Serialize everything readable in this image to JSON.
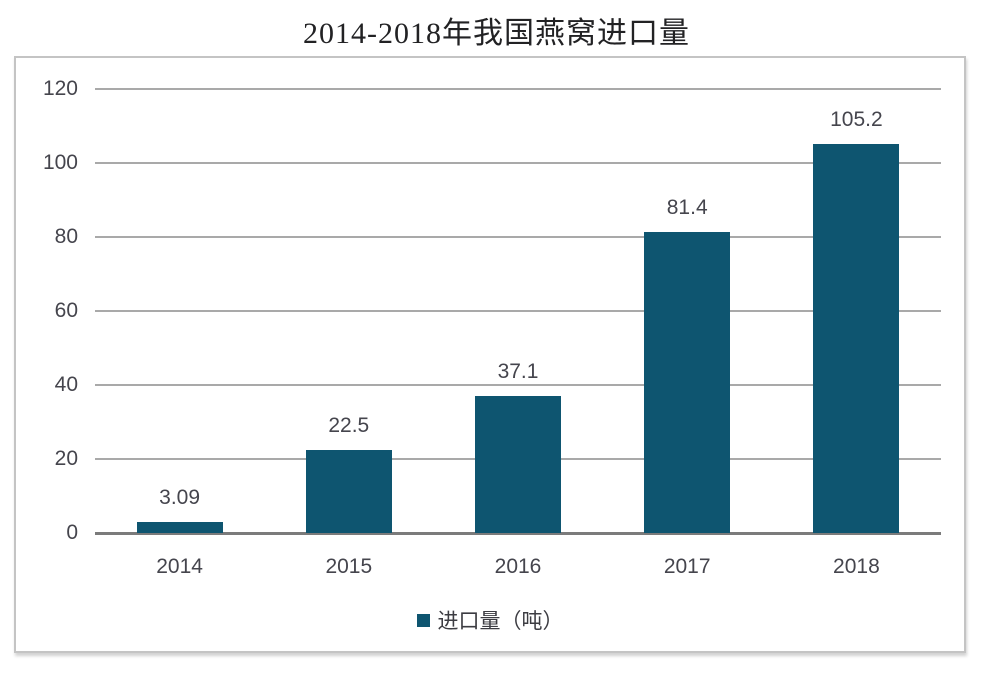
{
  "title": "2014-2018年我国燕窝进口量",
  "legend": {
    "label": "进口量（吨）"
  },
  "colors": {
    "bar": "#0e5570",
    "gridline": "#a9a9a9",
    "axis_line": "#7b7b7b",
    "text": "#45454d",
    "border": "#c4c4c4"
  },
  "chart_data": {
    "type": "bar",
    "title": "2014-2018年我国燕窝进口量",
    "categories": [
      "2014",
      "2015",
      "2016",
      "2017",
      "2018"
    ],
    "series": [
      {
        "name": "进口量（吨）",
        "values": [
          3.09,
          22.5,
          37.1,
          81.4,
          105.2
        ]
      }
    ],
    "data_labels": [
      "3.09",
      "22.5",
      "37.1",
      "81.4",
      "105.2"
    ],
    "xlabel": "",
    "ylabel": "",
    "ylim": [
      0,
      120
    ],
    "yticks": [
      0,
      20,
      40,
      60,
      80,
      100,
      120
    ],
    "grid": true,
    "legend_position": "bottom"
  }
}
